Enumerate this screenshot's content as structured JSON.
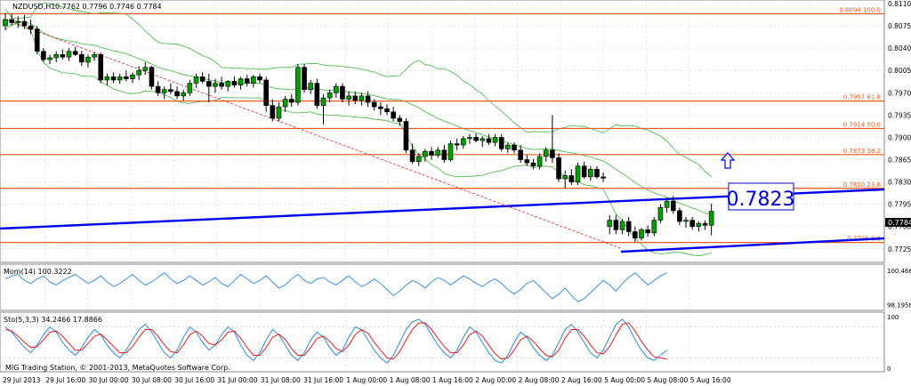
{
  "chart_data": [
    {
      "type": "candlestick",
      "symbol_label": "NZDUSD,H1",
      "ohlc_label": "0.7762 0.7796 0.7746 0.7784",
      "ylim": [
        0.7708,
        0.811
      ],
      "y_ticks": [
        "0.8110",
        "0.8075",
        "0.8040",
        "0.8005",
        "0.7970",
        "0.7935",
        "0.7900",
        "0.7865",
        "0.7830",
        "0.7795",
        "0.7760",
        "0.7725"
      ],
      "x_ticks": [
        "29 Jul 2013",
        "29 Jul 16:00",
        "30 Jul 00:00",
        "30 Jul 08:00",
        "30 Jul 16:00",
        "31 Jul 00:00",
        "31 Jul 08:00",
        "31 Jul 16:00",
        "1 Aug 00:00",
        "1 Aug 08:00",
        "1 Aug 16:00",
        "2 Aug 00:00",
        "2 Aug 08:00",
        "2 Aug 16:00",
        "5 Aug 00:00",
        "5 Aug 08:00",
        "5 Aug 16:00"
      ],
      "current_price": "0.7784",
      "callout_price": "0.7823",
      "fib_levels": [
        {
          "label": "0.8094 100.0",
          "price": 0.8094
        },
        {
          "label": "0.7957 61.8",
          "price": 0.7957
        },
        {
          "label": "0.7914 50.0",
          "price": 0.7914
        },
        {
          "label": "0.7873 38.2",
          "price": 0.7873
        },
        {
          "label": "0.7820 23.6",
          "price": 0.782
        },
        {
          "label": "0.7735 0.0",
          "price": 0.7735
        }
      ],
      "candles": [
        {
          "o": 0.8075,
          "h": 0.8095,
          "l": 0.8068,
          "c": 0.8085
        },
        {
          "o": 0.8085,
          "h": 0.8094,
          "l": 0.8075,
          "c": 0.808
        },
        {
          "o": 0.808,
          "h": 0.809,
          "l": 0.8072,
          "c": 0.8082
        },
        {
          "o": 0.8082,
          "h": 0.8092,
          "l": 0.807,
          "c": 0.8075
        },
        {
          "o": 0.8075,
          "h": 0.8085,
          "l": 0.8062,
          "c": 0.807
        },
        {
          "o": 0.807,
          "h": 0.8075,
          "l": 0.803,
          "c": 0.8035
        },
        {
          "o": 0.8035,
          "h": 0.804,
          "l": 0.8018,
          "c": 0.8022
        },
        {
          "o": 0.8022,
          "h": 0.803,
          "l": 0.8015,
          "c": 0.8025
        },
        {
          "o": 0.8025,
          "h": 0.8035,
          "l": 0.8018,
          "c": 0.803
        },
        {
          "o": 0.803,
          "h": 0.8038,
          "l": 0.8022,
          "c": 0.8026
        },
        {
          "o": 0.8026,
          "h": 0.804,
          "l": 0.802,
          "c": 0.8035
        },
        {
          "o": 0.8035,
          "h": 0.8042,
          "l": 0.8028,
          "c": 0.803
        },
        {
          "o": 0.803,
          "h": 0.8036,
          "l": 0.8012,
          "c": 0.8018
        },
        {
          "o": 0.8018,
          "h": 0.803,
          "l": 0.801,
          "c": 0.8026
        },
        {
          "o": 0.8026,
          "h": 0.8034,
          "l": 0.802,
          "c": 0.803
        },
        {
          "o": 0.803,
          "h": 0.8033,
          "l": 0.7985,
          "c": 0.799
        },
        {
          "o": 0.799,
          "h": 0.8,
          "l": 0.7982,
          "c": 0.7995
        },
        {
          "o": 0.7995,
          "h": 0.8002,
          "l": 0.7985,
          "c": 0.799
        },
        {
          "o": 0.799,
          "h": 0.8,
          "l": 0.7984,
          "c": 0.7995
        },
        {
          "o": 0.7995,
          "h": 0.8005,
          "l": 0.7988,
          "c": 0.7992
        },
        {
          "o": 0.7992,
          "h": 0.8002,
          "l": 0.7985,
          "c": 0.7998
        },
        {
          "o": 0.7998,
          "h": 0.8012,
          "l": 0.799,
          "c": 0.8005
        },
        {
          "o": 0.8005,
          "h": 0.8018,
          "l": 0.7998,
          "c": 0.801
        },
        {
          "o": 0.801,
          "h": 0.8012,
          "l": 0.7975,
          "c": 0.798
        },
        {
          "o": 0.798,
          "h": 0.7988,
          "l": 0.7965,
          "c": 0.797
        },
        {
          "o": 0.797,
          "h": 0.798,
          "l": 0.796,
          "c": 0.7975
        },
        {
          "o": 0.7975,
          "h": 0.7985,
          "l": 0.7968,
          "c": 0.7972
        },
        {
          "o": 0.7972,
          "h": 0.798,
          "l": 0.796,
          "c": 0.7965
        },
        {
          "o": 0.7965,
          "h": 0.7975,
          "l": 0.7958,
          "c": 0.797
        },
        {
          "o": 0.797,
          "h": 0.799,
          "l": 0.7965,
          "c": 0.7985
        },
        {
          "o": 0.7985,
          "h": 0.8,
          "l": 0.7978,
          "c": 0.7995
        },
        {
          "o": 0.7995,
          "h": 0.8002,
          "l": 0.7985,
          "c": 0.7988
        },
        {
          "o": 0.7988,
          "h": 0.8,
          "l": 0.7955,
          "c": 0.798
        },
        {
          "o": 0.798,
          "h": 0.7992,
          "l": 0.797,
          "c": 0.7985
        },
        {
          "o": 0.7985,
          "h": 0.7995,
          "l": 0.7975,
          "c": 0.798
        },
        {
          "o": 0.798,
          "h": 0.799,
          "l": 0.7972,
          "c": 0.7988
        },
        {
          "o": 0.7988,
          "h": 0.7996,
          "l": 0.7978,
          "c": 0.7982
        },
        {
          "o": 0.7982,
          "h": 0.7995,
          "l": 0.7975,
          "c": 0.7992
        },
        {
          "o": 0.7992,
          "h": 0.7998,
          "l": 0.798,
          "c": 0.7985
        },
        {
          "o": 0.7985,
          "h": 0.7998,
          "l": 0.7978,
          "c": 0.7995
        },
        {
          "o": 0.7995,
          "h": 0.8,
          "l": 0.7985,
          "c": 0.799
        },
        {
          "o": 0.799,
          "h": 0.7995,
          "l": 0.794,
          "c": 0.795
        },
        {
          "o": 0.795,
          "h": 0.796,
          "l": 0.7925,
          "c": 0.793
        },
        {
          "o": 0.793,
          "h": 0.7955,
          "l": 0.7925,
          "c": 0.7948
        },
        {
          "o": 0.7948,
          "h": 0.7965,
          "l": 0.794,
          "c": 0.796
        },
        {
          "o": 0.796,
          "h": 0.7968,
          "l": 0.7948,
          "c": 0.7955
        },
        {
          "o": 0.7955,
          "h": 0.8015,
          "l": 0.795,
          "c": 0.801
        },
        {
          "o": 0.801,
          "h": 0.8015,
          "l": 0.797,
          "c": 0.7975
        },
        {
          "o": 0.7975,
          "h": 0.799,
          "l": 0.7968,
          "c": 0.7985
        },
        {
          "o": 0.7985,
          "h": 0.7992,
          "l": 0.7945,
          "c": 0.795
        },
        {
          "o": 0.795,
          "h": 0.7968,
          "l": 0.792,
          "c": 0.7962
        },
        {
          "o": 0.7962,
          "h": 0.7975,
          "l": 0.7955,
          "c": 0.797
        },
        {
          "o": 0.797,
          "h": 0.7985,
          "l": 0.7962,
          "c": 0.798
        },
        {
          "o": 0.798,
          "h": 0.7985,
          "l": 0.7955,
          "c": 0.796
        },
        {
          "o": 0.796,
          "h": 0.7972,
          "l": 0.795,
          "c": 0.7965
        },
        {
          "o": 0.7965,
          "h": 0.7972,
          "l": 0.7952,
          "c": 0.7958
        },
        {
          "o": 0.7958,
          "h": 0.797,
          "l": 0.795,
          "c": 0.7965
        },
        {
          "o": 0.7965,
          "h": 0.7972,
          "l": 0.7948,
          "c": 0.7955
        },
        {
          "o": 0.7955,
          "h": 0.796,
          "l": 0.7942,
          "c": 0.7948
        },
        {
          "o": 0.7948,
          "h": 0.7955,
          "l": 0.7935,
          "c": 0.7945
        },
        {
          "o": 0.7945,
          "h": 0.7952,
          "l": 0.7935,
          "c": 0.794
        },
        {
          "o": 0.794,
          "h": 0.7948,
          "l": 0.7925,
          "c": 0.793
        },
        {
          "o": 0.793,
          "h": 0.7935,
          "l": 0.7918,
          "c": 0.7925
        },
        {
          "o": 0.7925,
          "h": 0.793,
          "l": 0.7875,
          "c": 0.788
        },
        {
          "o": 0.788,
          "h": 0.789,
          "l": 0.7858,
          "c": 0.7862
        },
        {
          "o": 0.7862,
          "h": 0.7875,
          "l": 0.7855,
          "c": 0.787
        },
        {
          "o": 0.787,
          "h": 0.7882,
          "l": 0.7862,
          "c": 0.7878
        },
        {
          "o": 0.7878,
          "h": 0.7885,
          "l": 0.7865,
          "c": 0.7872
        },
        {
          "o": 0.7872,
          "h": 0.7885,
          "l": 0.7868,
          "c": 0.788
        },
        {
          "o": 0.788,
          "h": 0.7888,
          "l": 0.786,
          "c": 0.7865
        },
        {
          "o": 0.7865,
          "h": 0.7895,
          "l": 0.7862,
          "c": 0.789
        },
        {
          "o": 0.789,
          "h": 0.7898,
          "l": 0.788,
          "c": 0.7888
        },
        {
          "o": 0.7888,
          "h": 0.7902,
          "l": 0.7882,
          "c": 0.7898
        },
        {
          "o": 0.7898,
          "h": 0.7905,
          "l": 0.789,
          "c": 0.79
        },
        {
          "o": 0.79,
          "h": 0.7906,
          "l": 0.7892,
          "c": 0.7895
        },
        {
          "o": 0.7895,
          "h": 0.7902,
          "l": 0.7885,
          "c": 0.7898
        },
        {
          "o": 0.7898,
          "h": 0.7905,
          "l": 0.7888,
          "c": 0.7892
        },
        {
          "o": 0.7892,
          "h": 0.7905,
          "l": 0.7886,
          "c": 0.79
        },
        {
          "o": 0.79,
          "h": 0.7905,
          "l": 0.7878,
          "c": 0.7882
        },
        {
          "o": 0.7882,
          "h": 0.7892,
          "l": 0.7876,
          "c": 0.7888
        },
        {
          "o": 0.7888,
          "h": 0.7892,
          "l": 0.7875,
          "c": 0.788
        },
        {
          "o": 0.788,
          "h": 0.7888,
          "l": 0.786,
          "c": 0.7865
        },
        {
          "o": 0.7865,
          "h": 0.7872,
          "l": 0.7855,
          "c": 0.786
        },
        {
          "o": 0.786,
          "h": 0.7866,
          "l": 0.785,
          "c": 0.7855
        },
        {
          "o": 0.7855,
          "h": 0.7875,
          "l": 0.785,
          "c": 0.787
        },
        {
          "o": 0.787,
          "h": 0.7885,
          "l": 0.7862,
          "c": 0.788
        },
        {
          "o": 0.788,
          "h": 0.7935,
          "l": 0.786,
          "c": 0.7868
        },
        {
          "o": 0.7868,
          "h": 0.7875,
          "l": 0.783,
          "c": 0.7835
        },
        {
          "o": 0.7835,
          "h": 0.7848,
          "l": 0.782,
          "c": 0.784
        },
        {
          "o": 0.784,
          "h": 0.785,
          "l": 0.7825,
          "c": 0.783
        },
        {
          "o": 0.783,
          "h": 0.786,
          "l": 0.7825,
          "c": 0.7855
        },
        {
          "o": 0.7855,
          "h": 0.7862,
          "l": 0.7835,
          "c": 0.7838
        },
        {
          "o": 0.7838,
          "h": 0.7855,
          "l": 0.7832,
          "c": 0.785
        },
        {
          "o": 0.785,
          "h": 0.7855,
          "l": 0.7835,
          "c": 0.7838
        },
        {
          "o": 0.7838,
          "h": 0.7845,
          "l": 0.783,
          "c": 0.7836
        },
        {
          "o": 0.776,
          "h": 0.7778,
          "l": 0.7748,
          "c": 0.777
        },
        {
          "o": 0.777,
          "h": 0.7778,
          "l": 0.7748,
          "c": 0.7755
        },
        {
          "o": 0.7755,
          "h": 0.7772,
          "l": 0.7748,
          "c": 0.7768
        },
        {
          "o": 0.7768,
          "h": 0.7775,
          "l": 0.7745,
          "c": 0.7752
        },
        {
          "o": 0.7752,
          "h": 0.776,
          "l": 0.7736,
          "c": 0.7742
        },
        {
          "o": 0.7742,
          "h": 0.7758,
          "l": 0.7738,
          "c": 0.7755
        },
        {
          "o": 0.7755,
          "h": 0.7762,
          "l": 0.7744,
          "c": 0.775
        },
        {
          "o": 0.775,
          "h": 0.7775,
          "l": 0.7745,
          "c": 0.777
        },
        {
          "o": 0.777,
          "h": 0.7795,
          "l": 0.7765,
          "c": 0.779
        },
        {
          "o": 0.779,
          "h": 0.7805,
          "l": 0.7782,
          "c": 0.78
        },
        {
          "o": 0.78,
          "h": 0.7808,
          "l": 0.778,
          "c": 0.7785
        },
        {
          "o": 0.7785,
          "h": 0.779,
          "l": 0.7762,
          "c": 0.7768
        },
        {
          "o": 0.7768,
          "h": 0.7775,
          "l": 0.7758,
          "c": 0.777
        },
        {
          "o": 0.777,
          "h": 0.7775,
          "l": 0.7755,
          "c": 0.776
        },
        {
          "o": 0.776,
          "h": 0.7768,
          "l": 0.7752,
          "c": 0.7765
        },
        {
          "o": 0.7765,
          "h": 0.777,
          "l": 0.7755,
          "c": 0.7762
        },
        {
          "o": 0.7762,
          "h": 0.7796,
          "l": 0.7746,
          "c": 0.7784
        }
      ]
    },
    {
      "type": "line",
      "label": "Mom(14) 100.3222",
      "y_ticks": [
        "100.4666",
        "98.1958"
      ],
      "ylim": [
        98.0,
        100.7
      ],
      "values": [
        99.9,
        100.1,
        100.2,
        99.8,
        99.6,
        99.9,
        100.1,
        99.7,
        99.5,
        99.8,
        100.0,
        100.2,
        99.9,
        99.6,
        99.8,
        100.1,
        99.7,
        99.4,
        99.6,
        99.9,
        100.2,
        99.8,
        99.5,
        99.7,
        100.0,
        100.3,
        99.9,
        99.6,
        99.8,
        100.1,
        99.8,
        99.5,
        99.7,
        100.0,
        99.6,
        99.4,
        99.8,
        100.2,
        99.9,
        99.6,
        99.8,
        100.1,
        99.7,
        99.3,
        99.5,
        99.9,
        100.2,
        99.8,
        99.6,
        99.9,
        100.0,
        99.7,
        99.5,
        99.8,
        100.1,
        99.7,
        99.4,
        99.6,
        99.9,
        99.6,
        99.2,
        98.8,
        99.1,
        99.5,
        99.8,
        99.6,
        99.3,
        99.7,
        100.0,
        99.8,
        99.5,
        99.8,
        100.1,
        99.9,
        99.6,
        99.4,
        99.7,
        99.9,
        99.6,
        99.2,
        98.9,
        99.2,
        99.6,
        99.8,
        99.4,
        99.0,
        98.6,
        98.9,
        99.3,
        98.8,
        98.4,
        98.6,
        99.0,
        99.4,
        99.8,
        99.5,
        99.1,
        99.6,
        100.0,
        100.3,
        99.9,
        99.5,
        99.8,
        100.1,
        100.3
      ]
    },
    {
      "type": "line",
      "label": "Sto(5,3,3) 34.2466 17.8866",
      "y_ticks": [
        "100",
        "0"
      ],
      "ylim": [
        0,
        100
      ],
      "series": [
        {
          "values": [
            80,
            70,
            55,
            40,
            30,
            45,
            65,
            80,
            70,
            50,
            35,
            25,
            40,
            60,
            75,
            65,
            45,
            30,
            20,
            35,
            55,
            75,
            85,
            70,
            50,
            30,
            20,
            35,
            60,
            80,
            70,
            50,
            35,
            45,
            65,
            80,
            70,
            45,
            25,
            15,
            30,
            55,
            75,
            65,
            45,
            25,
            15,
            30,
            55,
            70,
            60,
            40,
            25,
            35,
            60,
            80,
            75,
            55,
            35,
            20,
            10,
            25,
            50,
            75,
            90,
            95,
            85,
            65,
            45,
            30,
            20,
            35,
            60,
            80,
            70,
            50,
            30,
            15,
            10,
            25,
            50,
            70,
            60,
            40,
            25,
            15,
            25,
            50,
            75,
            85,
            70,
            50,
            30,
            20,
            35,
            60,
            85,
            95,
            80,
            55,
            35,
            20,
            15,
            25,
            35
          ]
        },
        {
          "values": [
            75,
            72,
            62,
            50,
            40,
            42,
            55,
            70,
            72,
            62,
            48,
            35,
            35,
            48,
            62,
            66,
            55,
            42,
            30,
            30,
            42,
            60,
            75,
            75,
            62,
            45,
            32,
            30,
            45,
            65,
            72,
            62,
            48,
            45,
            55,
            70,
            72,
            58,
            40,
            25,
            25,
            40,
            60,
            66,
            56,
            38,
            25,
            25,
            40,
            58,
            62,
            52,
            38,
            32,
            45,
            65,
            75,
            68,
            50,
            35,
            20,
            18,
            32,
            55,
            75,
            88,
            88,
            75,
            58,
            42,
            30,
            30,
            45,
            65,
            72,
            62,
            45,
            28,
            18,
            20,
            35,
            55,
            62,
            52,
            38,
            25,
            22,
            35,
            58,
            75,
            75,
            62,
            45,
            30,
            28,
            42,
            65,
            85,
            88,
            72,
            52,
            35,
            22,
            20,
            18
          ]
        }
      ]
    }
  ],
  "watermark": "MIG Trading Station, © 2001-2013, MetaQuotes Software Corp.",
  "colors": {
    "candle": "#000000",
    "bull_body": "#00a000",
    "fib": "#e85a1e",
    "trend": "#0000ee",
    "bands": "#3cb83c",
    "momentum": "#3b8ede",
    "stoch_main": "#2a8ad6",
    "stoch_signal": "#e02020",
    "grid": "#d0d0d0",
    "dashed": "#e02020"
  },
  "icons": {
    "signal": "up-arrow-icon"
  }
}
